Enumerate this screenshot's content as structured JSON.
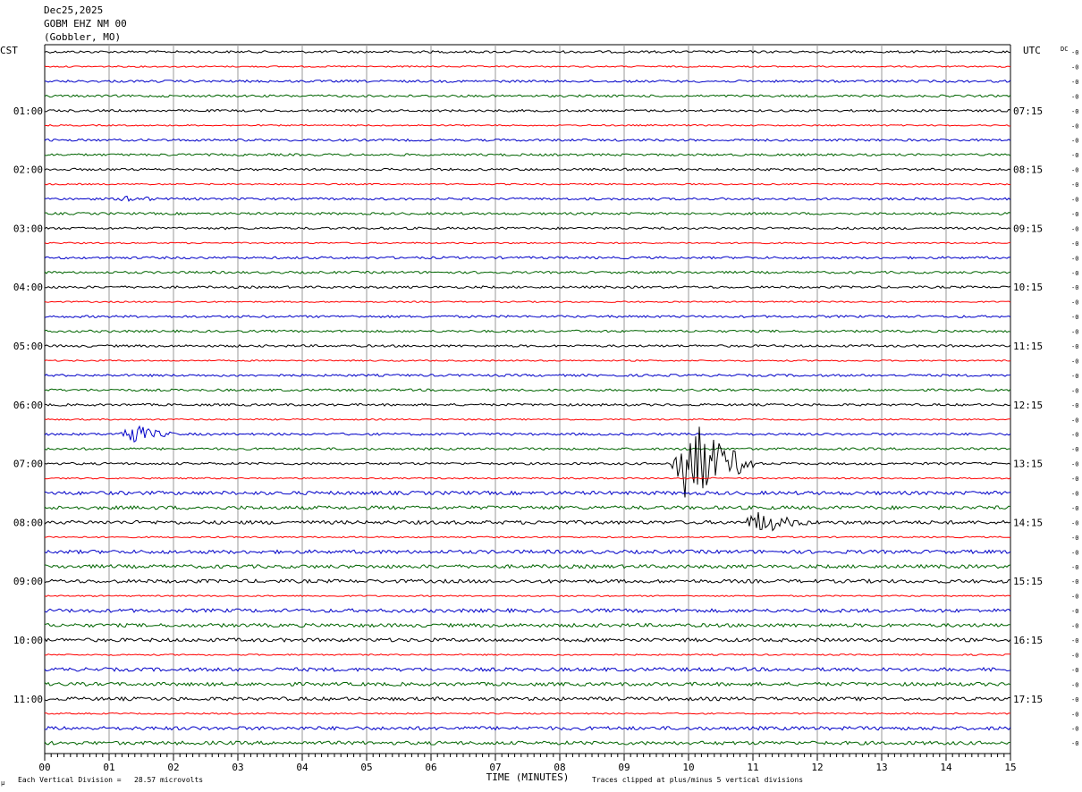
{
  "header": {
    "date": "Dec25,2025",
    "station": "GOBM EHZ NM 00",
    "location": "(Gobbler, MO)"
  },
  "left_timezone": "CST",
  "right_timezone": "UTC",
  "dc_label": "DC",
  "footer": {
    "scale_note": "Each Vertical Division =   28.57 microvolts",
    "clip_note": "Traces clipped at plus/minus 5 vertical divisions",
    "corner_mark": "μ"
  },
  "colors": {
    "trace_cycle": [
      "#000000",
      "#ff0000",
      "#0000c8",
      "#006400"
    ],
    "grid": "#9a9a9a"
  },
  "chart_data": {
    "type": "line",
    "title": "",
    "xlabel": "TIME (MINUTES)",
    "ylabel": "",
    "xlim": [
      0,
      15
    ],
    "x_tick_labels": [
      "00",
      "01",
      "02",
      "03",
      "04",
      "05",
      "06",
      "07",
      "08",
      "09",
      "10",
      "11",
      "12",
      "13",
      "14",
      "15"
    ],
    "grid": true,
    "trace_count": 48,
    "trace_offset_label": "-0",
    "left_hour_labels": [
      "01:00",
      "02:00",
      "03:00",
      "04:00",
      "05:00",
      "06:00",
      "07:00",
      "08:00",
      "09:00",
      "10:00",
      "11:00"
    ],
    "right_hour_labels": [
      "07:15",
      "08:15",
      "09:15",
      "10:15",
      "11:15",
      "12:15",
      "13:15",
      "14:15",
      "15:15",
      "16:15",
      "17:15"
    ],
    "events": [
      {
        "trace": 10,
        "start_min": 1.1,
        "end_min": 2.0,
        "amplitude": 5
      },
      {
        "trace": 26,
        "start_min": 1.1,
        "end_min": 2.0,
        "amplitude": 14
      },
      {
        "trace": 28,
        "start_min": 9.7,
        "end_min": 11.0,
        "amplitude": 55
      },
      {
        "trace": 32,
        "start_min": 10.8,
        "end_min": 12.0,
        "amplitude": 14
      }
    ]
  }
}
